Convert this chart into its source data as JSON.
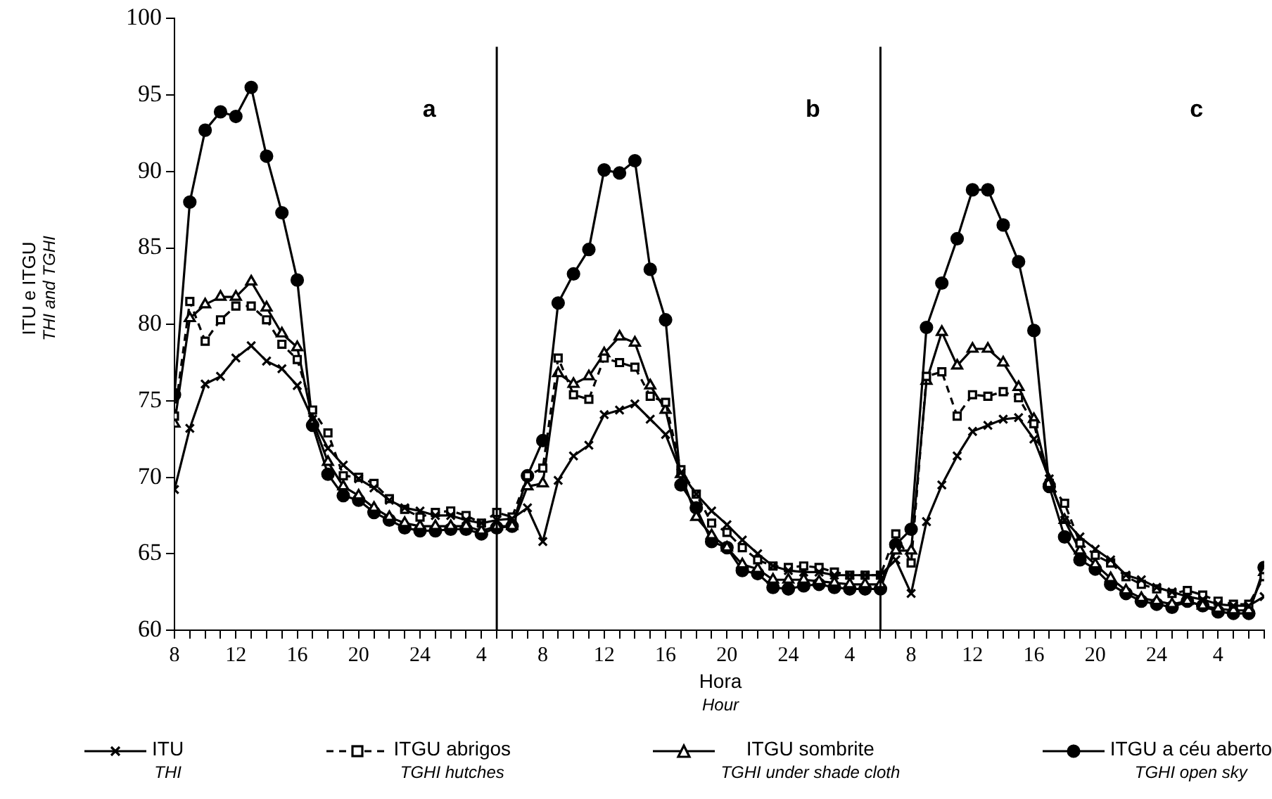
{
  "chart_data": {
    "type": "line",
    "xlabel": "Hora\nHour",
    "ylabel": "ITU e ITGU\nTHI and TGHI",
    "annotations": [
      "a",
      "b",
      "c"
    ],
    "x": [
      "--01-01T08:00",
      "--01-01T09:00",
      "--01-01T10:00",
      "--01-01T11:00",
      "--01-01T12:00",
      "--01-01T13:00",
      "--01-01T14:00",
      "--01-01T15:00",
      "--01-01T16:00",
      "--01-01T17:00",
      "--01-01T18:00",
      "--01-01T19:00",
      "--01-01T20:00",
      "--01-01T21:00",
      "--01-01T22:00",
      "--01-01T23:00",
      "--01-02T00:00",
      "--01-02T01:00",
      "--01-02T02:00",
      "--01-02T03:00",
      "--01-02T04:00",
      "--01-02T05:00",
      "--01-02T06:00",
      "--01-02T07:00",
      "--01-02T08:00",
      "--01-02T09:00",
      "--01-02T10:00",
      "--01-02T11:00",
      "--01-02T12:00",
      "--01-02T13:00",
      "--01-02T14:00",
      "--01-02T15:00",
      "--01-02T16:00",
      "--01-02T17:00",
      "--01-02T18:00",
      "--01-02T19:00",
      "--01-02T20:00",
      "--01-02T21:00",
      "--01-02T22:00",
      "--01-02T23:00",
      "--01-03T00:00",
      "--01-03T01:00",
      "--01-03T02:00",
      "--01-03T03:00",
      "--01-03T04:00",
      "--01-03T05:00",
      "--01-03T06:00",
      "--01-03T07:00",
      "--01-03T08:00",
      "--01-03T09:00",
      "--01-03T10:00",
      "--01-03T11:00",
      "--01-03T12:00",
      "--01-03T13:00",
      "--01-03T14:00",
      "--01-03T15:00",
      "--01-03T16:00",
      "--01-03T17:00",
      "--01-03T18:00",
      "--01-03T19:00",
      "--01-03T20:00",
      "--01-03T21:00",
      "--01-03T22:00",
      "--01-03T23:00",
      "--01-04T00:00",
      "--01-04T01:00",
      "--01-04T02:00",
      "--01-04T03:00",
      "--01-04T04:00",
      "--01-04T05:00",
      "--01-04T06:00",
      "--01-04T07:00"
    ],
    "series": [
      {
        "name": "ITU\nTHI",
        "color": "#000000",
        "marker": "cross",
        "line_style": "solid",
        "values": [
          69.2,
          73.2,
          76.1,
          76.6,
          77.8,
          78.6,
          77.6,
          77.1,
          76.0,
          73.8,
          71.9,
          70.8,
          69.9,
          69.3,
          68.5,
          68.0,
          67.8,
          67.5,
          67.5,
          67.2,
          67.0,
          67.2,
          67.3,
          68.0,
          65.8,
          69.8,
          71.4,
          72.1,
          74.1,
          74.4,
          74.8,
          73.8,
          72.8,
          70.3,
          68.9,
          67.8,
          66.9,
          65.9,
          65.0,
          64.2,
          63.9,
          63.8,
          63.8,
          63.6,
          63.6,
          63.6,
          63.6,
          64.6,
          62.4,
          67.1,
          69.5,
          71.4,
          73.0,
          73.4,
          73.8,
          73.9,
          72.5,
          69.9,
          67.2,
          66.1,
          65.3,
          64.6,
          63.6,
          63.3,
          62.8,
          62.5,
          62.2,
          62.0,
          61.7,
          61.6,
          61.6,
          62.2
        ]
      },
      {
        "name": "ITGU abrigos\nTGHI hutches",
        "color": "#000000",
        "marker": "square",
        "line_style": "dashed",
        "values": [
          74.0,
          81.5,
          78.9,
          80.3,
          81.2,
          81.2,
          80.3,
          78.7,
          77.7,
          74.4,
          72.9,
          70.1,
          70.0,
          69.6,
          68.6,
          67.9,
          67.4,
          67.7,
          67.8,
          67.5,
          67.0,
          67.7,
          67.4,
          70.1,
          70.6,
          77.8,
          75.4,
          75.1,
          77.8,
          77.5,
          77.2,
          75.3,
          74.9,
          70.5,
          68.9,
          67.0,
          66.4,
          65.4,
          64.6,
          64.2,
          64.1,
          64.2,
          64.1,
          63.8,
          63.6,
          63.6,
          63.6,
          66.3,
          64.4,
          76.6,
          76.9,
          74.0,
          75.4,
          75.3,
          75.6,
          75.2,
          73.5,
          69.6,
          68.3,
          65.7,
          64.9,
          64.4,
          63.5,
          63.0,
          62.7,
          62.4,
          62.6,
          62.3,
          61.9,
          61.7,
          61.7,
          63.5
        ]
      },
      {
        "name": "ITGU sombrite\nTGHI under shade cloth",
        "color": "#000000",
        "marker": "triangle",
        "line_style": "solid",
        "values": [
          73.5,
          80.4,
          81.3,
          81.8,
          81.8,
          82.8,
          81.1,
          79.4,
          78.5,
          73.7,
          71.0,
          69.4,
          68.8,
          68.0,
          67.4,
          67.0,
          66.8,
          66.8,
          66.8,
          66.8,
          66.5,
          66.8,
          66.8,
          69.4,
          69.6,
          76.8,
          76.1,
          76.6,
          78.1,
          79.2,
          78.8,
          76.0,
          74.4,
          70.2,
          67.4,
          66.2,
          65.4,
          64.3,
          64.0,
          63.3,
          63.3,
          63.3,
          63.2,
          63.1,
          63.0,
          63.0,
          63.0,
          65.2,
          65.2,
          76.3,
          79.5,
          77.3,
          78.4,
          78.4,
          77.5,
          75.9,
          73.8,
          69.8,
          67.2,
          65.2,
          64.3,
          63.4,
          62.6,
          62.1,
          61.9,
          61.7,
          61.9,
          61.6,
          61.4,
          61.3,
          61.3,
          63.8
        ]
      },
      {
        "name": "ITGU a céu aberto\nTGHI open sky",
        "color": "#000000",
        "marker": "circle",
        "line_style": "solid",
        "values": [
          75.4,
          88.0,
          92.7,
          93.9,
          93.6,
          95.5,
          91.0,
          87.3,
          82.9,
          73.4,
          70.2,
          68.8,
          68.5,
          67.7,
          67.2,
          66.7,
          66.5,
          66.5,
          66.6,
          66.6,
          66.3,
          66.7,
          66.8,
          70.1,
          72.4,
          81.4,
          83.3,
          84.9,
          90.1,
          89.9,
          90.7,
          83.6,
          80.3,
          69.5,
          68.0,
          65.8,
          65.4,
          63.9,
          63.7,
          62.8,
          62.7,
          62.9,
          63.0,
          62.8,
          62.7,
          62.7,
          62.7,
          65.6,
          66.6,
          79.8,
          82.7,
          85.6,
          88.8,
          88.8,
          86.5,
          84.1,
          79.6,
          69.4,
          66.1,
          64.6,
          64.0,
          63.0,
          62.4,
          61.9,
          61.7,
          61.5,
          61.9,
          61.6,
          61.2,
          61.1,
          61.1,
          64.1
        ]
      }
    ],
    "xlim": [
      "--01-01T08:00",
      "--01-04T07:00"
    ],
    "xticks": [
      {
        "value": "--01-01T08:00",
        "label": "8"
      },
      {
        "value": "--01-01T09:00",
        "label": null
      },
      {
        "value": "--01-01T10:00",
        "label": null
      },
      {
        "value": "--01-01T11:00",
        "label": null
      },
      {
        "value": "--01-01T12:00",
        "label": "12"
      },
      {
        "value": "--01-01T13:00",
        "label": null
      },
      {
        "value": "--01-01T14:00",
        "label": null
      },
      {
        "value": "--01-01T15:00",
        "label": null
      },
      {
        "value": "--01-01T16:00",
        "label": "16"
      },
      {
        "value": "--01-01T17:00",
        "label": null
      },
      {
        "value": "--01-01T18:00",
        "label": null
      },
      {
        "value": "--01-01T19:00",
        "label": null
      },
      {
        "value": "--01-01T20:00",
        "label": "20"
      },
      {
        "value": "--01-01T21:00",
        "label": null
      },
      {
        "value": "--01-01T22:00",
        "label": null
      },
      {
        "value": "--01-01T23:00",
        "label": null
      },
      {
        "value": "--01-02T00:00",
        "label": "24"
      },
      {
        "value": "--01-02T01:00",
        "label": null
      },
      {
        "value": "--01-02T02:00",
        "label": null
      },
      {
        "value": "--01-02T03:00",
        "label": null
      },
      {
        "value": "--01-02T04:00",
        "label": "4"
      },
      {
        "value": "--01-02T05:00",
        "label": null
      },
      {
        "value": "--01-02T06:00",
        "label": null
      },
      {
        "value": "--01-02T07:00",
        "label": null
      },
      {
        "value": "--01-02T08:00",
        "label": "8"
      },
      {
        "value": "--01-02T09:00",
        "label": null
      },
      {
        "value": "--01-02T10:00",
        "label": null
      },
      {
        "value": "--01-02T11:00",
        "label": null
      },
      {
        "value": "--01-02T12:00",
        "label": "12"
      },
      {
        "value": "--01-02T13:00",
        "label": null
      },
      {
        "value": "--01-02T14:00",
        "label": null
      },
      {
        "value": "--01-02T15:00",
        "label": null
      },
      {
        "value": "--01-02T16:00",
        "label": "16"
      },
      {
        "value": "--01-02T17:00",
        "label": null
      },
      {
        "value": "--01-02T18:00",
        "label": null
      },
      {
        "value": "--01-02T19:00",
        "label": null
      },
      {
        "value": "--01-02T20:00",
        "label": "20"
      },
      {
        "value": "--01-02T21:00",
        "label": null
      },
      {
        "value": "--01-02T22:00",
        "label": null
      },
      {
        "value": "--01-02T23:00",
        "label": null
      },
      {
        "value": "--01-03T00:00",
        "label": "24"
      },
      {
        "value": "--01-03T01:00",
        "label": null
      },
      {
        "value": "--01-03T02:00",
        "label": null
      },
      {
        "value": "--01-03T03:00",
        "label": null
      },
      {
        "value": "--01-03T04:00",
        "label": "4"
      },
      {
        "value": "--01-03T05:00",
        "label": null
      },
      {
        "value": "--01-03T06:00",
        "label": null
      },
      {
        "value": "--01-03T07:00",
        "label": null
      },
      {
        "value": "--01-03T08:00",
        "label": "8"
      },
      {
        "value": "--01-03T09:00",
        "label": null
      },
      {
        "value": "--01-03T10:00",
        "label": null
      },
      {
        "value": "--01-03T11:00",
        "label": null
      },
      {
        "value": "--01-03T12:00",
        "label": "12"
      },
      {
        "value": "--01-03T13:00",
        "label": null
      },
      {
        "value": "--01-03T14:00",
        "label": null
      },
      {
        "value": "--01-03T15:00",
        "label": null
      },
      {
        "value": "--01-03T16:00",
        "label": "16"
      },
      {
        "value": "--01-03T17:00",
        "label": null
      },
      {
        "value": "--01-03T18:00",
        "label": null
      },
      {
        "value": "--01-03T19:00",
        "label": null
      },
      {
        "value": "--01-03T20:00",
        "label": "20"
      },
      {
        "value": "--01-03T21:00",
        "label": null
      },
      {
        "value": "--01-03T22:00",
        "label": null
      },
      {
        "value": "--01-03T23:00",
        "label": null
      },
      {
        "value": "--01-04T00:00",
        "label": "24"
      },
      {
        "value": "--01-04T01:00",
        "label": null
      },
      {
        "value": "--01-04T02:00",
        "label": null
      },
      {
        "value": "--01-04T03:00",
        "label": null
      },
      {
        "value": "--01-04T04:00",
        "label": "4"
      },
      {
        "value": "--01-04T05:00",
        "label": null
      },
      {
        "value": "--01-04T06:00",
        "label": null
      },
      {
        "value": "--01-04T07:00",
        "label": null
      }
    ],
    "ylim": [
      60,
      100
    ],
    "yticks": [
      60,
      65,
      70,
      75,
      80,
      85,
      90,
      95,
      100
    ],
    "ref_lines": [
      {
        "axis": "x",
        "value": "--01-02T05:00",
        "color": "#000000"
      },
      {
        "axis": "x",
        "value": "--01-03T06:00",
        "color": "#000000"
      }
    ],
    "grid": false,
    "legend": "bottom"
  }
}
